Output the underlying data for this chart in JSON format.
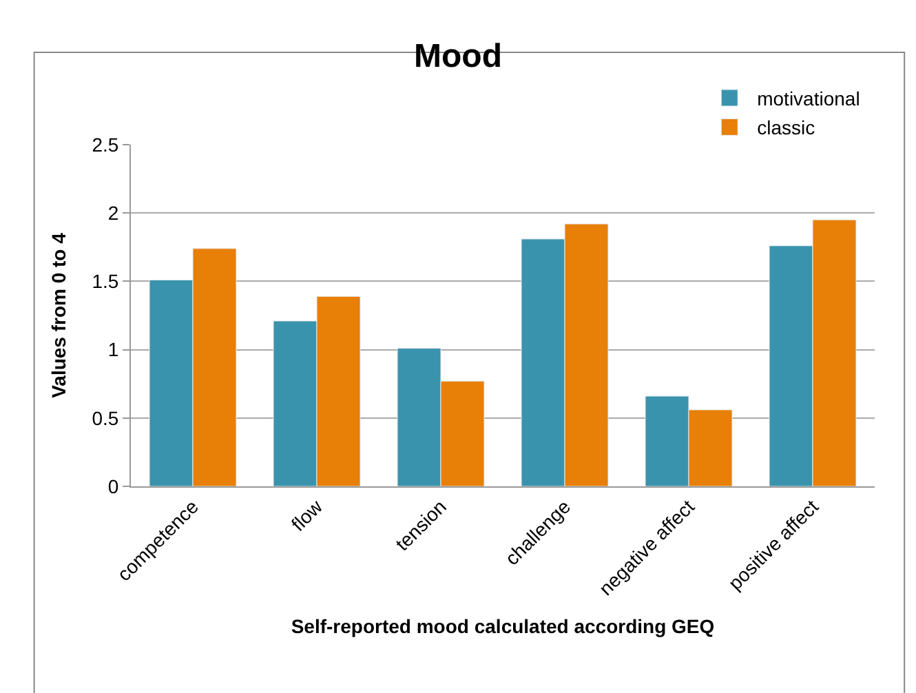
{
  "chart_data": {
    "type": "bar",
    "title": "Mood",
    "xlabel": "Self-reported mood calculated according GEQ",
    "ylabel": "Values from 0 to 4",
    "categories": [
      "competence",
      "flow",
      "tension",
      "challenge",
      "negative affect",
      "positive affect"
    ],
    "series": [
      {
        "name": "motivational",
        "color": "#3a93ad",
        "values": [
          1.51,
          1.21,
          1.01,
          1.81,
          0.66,
          1.76
        ]
      },
      {
        "name": "classic",
        "color": "#e87f07",
        "values": [
          1.74,
          1.39,
          0.77,
          1.92,
          0.56,
          1.95
        ]
      }
    ],
    "ylim": [
      0,
      2.5
    ],
    "yticks": [
      0,
      0.5,
      1,
      1.5,
      2,
      2.5
    ],
    "grid": "y",
    "legend": "top right"
  }
}
